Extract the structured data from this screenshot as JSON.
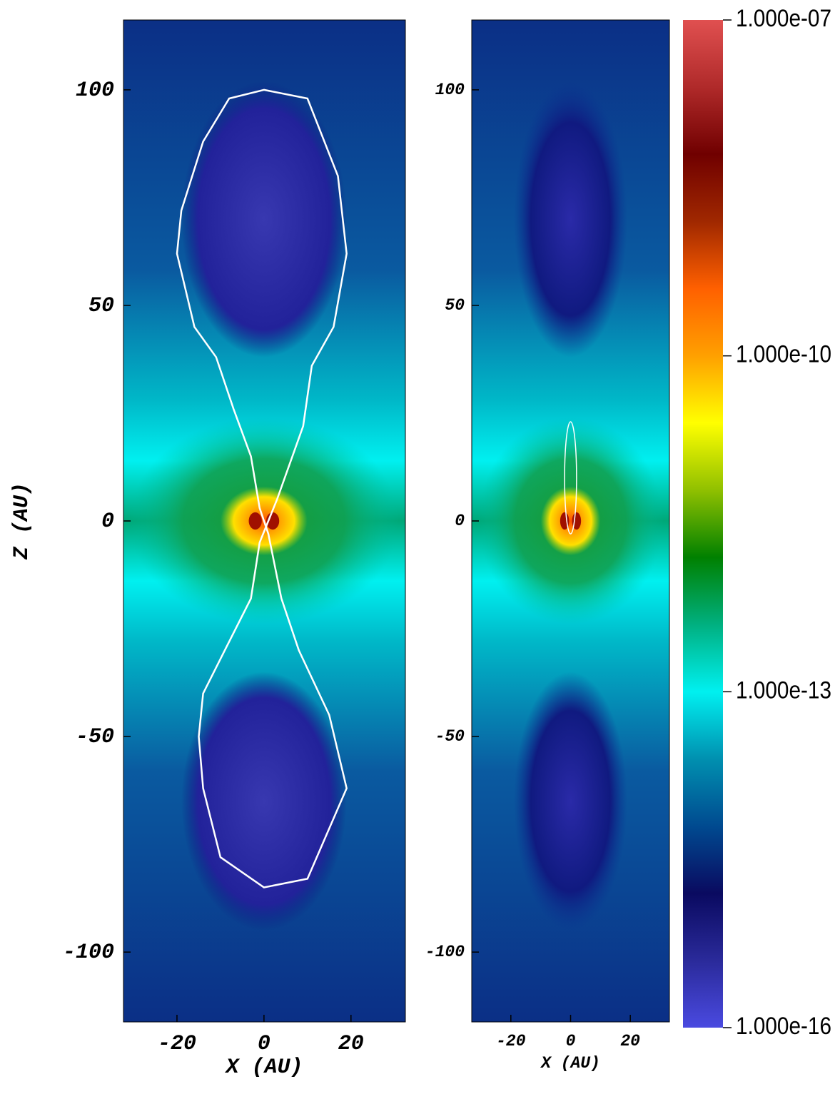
{
  "chart_data": [
    {
      "type": "heatmap",
      "xlabel": "X (AU)",
      "ylabel": "Z (AU)",
      "xlim": [
        -32.3,
        32.5
      ],
      "ylim": [
        -116.2,
        116.2
      ],
      "xticks": [
        -20,
        0,
        20
      ],
      "yticks": [
        -100,
        -50,
        0,
        50,
        100
      ]
    },
    {
      "type": "heatmap",
      "xlabel": "X (AU)",
      "xlim": [
        -33.1,
        33.1
      ],
      "ylim": [
        -116.2,
        116.2
      ],
      "xticks": [
        -20,
        0,
        20
      ],
      "yticks": [
        -100,
        -50,
        0,
        50,
        100
      ]
    },
    {
      "type": "colorbar",
      "scale": "log",
      "clim": [
        1e-16,
        1e-07
      ],
      "ticks": [
        {
          "value": 1e-16,
          "label": "1.000e-16"
        },
        {
          "value": 1e-13,
          "label": "1.000e-13"
        },
        {
          "value": 1e-10,
          "label": "1.000e-10"
        },
        {
          "value": 1e-07,
          "label": "1.000e-07"
        }
      ],
      "colors": [
        "#4a4ae0",
        "#2a2a9a",
        "#0a0a60",
        "#004a90",
        "#0090b0",
        "#00f0f0",
        "#00b080",
        "#008000",
        "#90c000",
        "#ffff00",
        "#ffa000",
        "#ff6000",
        "#a02800",
        "#700000",
        "#b02a2a",
        "#e05050"
      ]
    }
  ]
}
